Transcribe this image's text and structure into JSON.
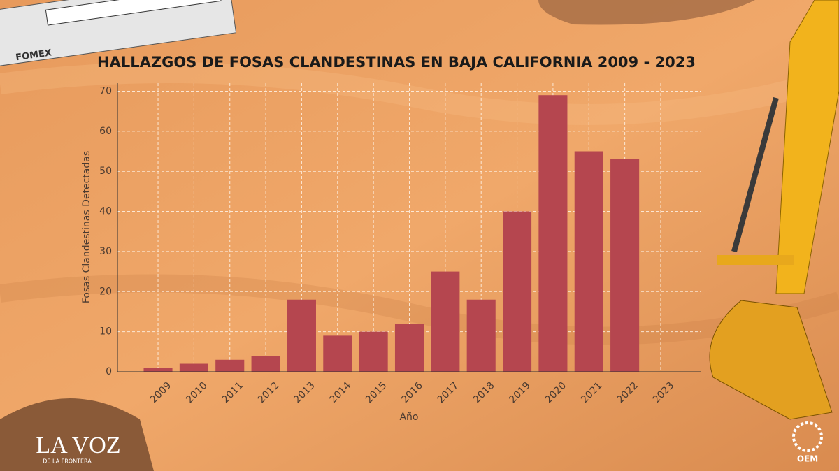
{
  "chart_data": {
    "type": "bar",
    "title": "HALLAZGOS DE FOSAS CLANDESTINAS EN BAJA CALIFORNIA 2009 - 2023",
    "x_label": "Año",
    "y_label": "Fosas Clandestinas Detectadas",
    "categories": [
      "2009",
      "2010",
      "2011",
      "2012",
      "2013",
      "2014",
      "2015",
      "2016",
      "2017",
      "2018",
      "2019",
      "2020",
      "2021",
      "2022",
      "2023"
    ],
    "values": [
      1,
      2,
      3,
      4,
      18,
      9,
      10,
      12,
      25,
      18,
      40,
      69,
      55,
      53,
      0
    ],
    "color": "#b5464f",
    "ylim": [
      0,
      72
    ],
    "yticks": [
      0,
      10,
      20,
      30,
      40,
      50,
      60,
      70
    ],
    "grid": true
  },
  "logos": {
    "fomex": "FOMEX",
    "la_voz": "LA VOZ",
    "la_voz_sub": "DE LA FRONTERA",
    "oem": "OEM"
  }
}
